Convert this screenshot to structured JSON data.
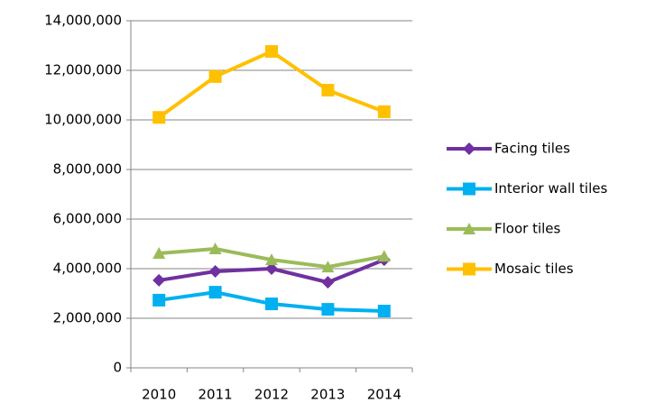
{
  "chart_data": {
    "type": "line",
    "categories": [
      "2010",
      "2011",
      "2012",
      "2013",
      "2014"
    ],
    "series": [
      {
        "name": "Facing tiles",
        "color": "#7030a0",
        "marker": "diamond",
        "values": [
          3530000,
          3890000,
          4000000,
          3450000,
          4360000
        ]
      },
      {
        "name": "Interior wall tiles",
        "color": "#00b0f0",
        "marker": "square",
        "values": [
          2730000,
          3050000,
          2580000,
          2360000,
          2290000
        ]
      },
      {
        "name": "Floor tiles",
        "color": "#9bbb59",
        "marker": "triangle",
        "values": [
          4620000,
          4800000,
          4360000,
          4070000,
          4500000
        ]
      },
      {
        "name": "Mosaic tiles",
        "color": "#ffc000",
        "marker": "square",
        "values": [
          10100000,
          11750000,
          12760000,
          11200000,
          10330000
        ]
      }
    ],
    "ylim": [
      0,
      14000000
    ],
    "yticks": [
      0,
      {
        "value": 2000000,
        "label": "2,000,000"
      },
      {
        "value": 4000000,
        "label": "4,000,000"
      },
      {
        "value": 6000000,
        "label": "6,000,000"
      },
      {
        "value": 8000000,
        "label": "8,000,000"
      },
      {
        "value": 10000000,
        "label": "10,000,000"
      },
      {
        "value": 12000000,
        "label": "12,000,000"
      },
      {
        "value": 14000000,
        "label": "14,000,000"
      }
    ],
    "grid": true,
    "legend": "right"
  }
}
